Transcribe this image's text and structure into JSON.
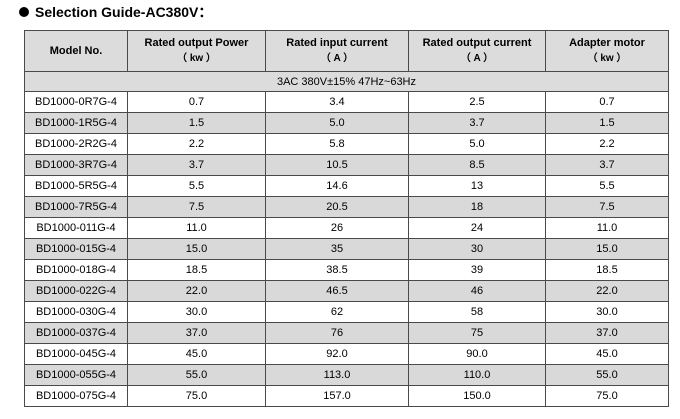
{
  "title": "Selection Guide-AC380V：",
  "headers": [
    {
      "line1": "Model No.",
      "line2": ""
    },
    {
      "line1": "Rated output Power",
      "line2": "（ kw ）"
    },
    {
      "line1": "Rated input current",
      "line2": "（ A ）"
    },
    {
      "line1": "Rated output current",
      "line2": "（ A ）"
    },
    {
      "line1": "Adapter motor",
      "line2": "（ kw ）"
    }
  ],
  "supply": "3AC 380V±15% 47Hz~63Hz",
  "rows": [
    [
      "BD1000-0R7G-4",
      "0.7",
      "3.4",
      "2.5",
      "0.7"
    ],
    [
      "BD1000-1R5G-4",
      "1.5",
      "5.0",
      "3.7",
      "1.5"
    ],
    [
      "BD1000-2R2G-4",
      "2.2",
      "5.8",
      "5.0",
      "2.2"
    ],
    [
      "BD1000-3R7G-4",
      "3.7",
      "10.5",
      "8.5",
      "3.7"
    ],
    [
      "BD1000-5R5G-4",
      "5.5",
      "14.6",
      "13",
      "5.5"
    ],
    [
      "BD1000-7R5G-4",
      "7.5",
      "20.5",
      "18",
      "7.5"
    ],
    [
      "BD1000-011G-4",
      "11.0",
      "26",
      "24",
      "11.0"
    ],
    [
      "BD1000-015G-4",
      "15.0",
      "35",
      "30",
      "15.0"
    ],
    [
      "BD1000-018G-4",
      "18.5",
      "38.5",
      "39",
      "18.5"
    ],
    [
      "BD1000-022G-4",
      "22.0",
      "46.5",
      "46",
      "22.0"
    ],
    [
      "BD1000-030G-4",
      "30.0",
      "62",
      "58",
      "30.0"
    ],
    [
      "BD1000-037G-4",
      "37.0",
      "76",
      "75",
      "37.0"
    ],
    [
      "BD1000-045G-4",
      "45.0",
      "92.0",
      "90.0",
      "45.0"
    ],
    [
      "BD1000-055G-4",
      "55.0",
      "113.0",
      "110.0",
      "55.0"
    ],
    [
      "BD1000-075G-4",
      "75.0",
      "157.0",
      "150.0",
      "75.0"
    ]
  ]
}
